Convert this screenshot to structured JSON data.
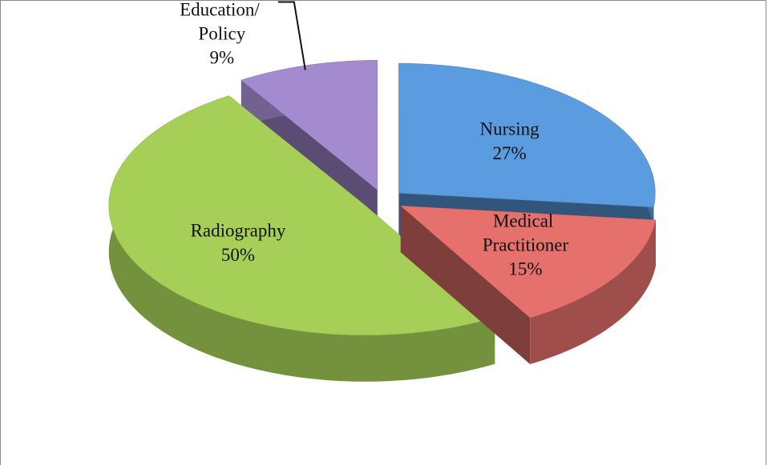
{
  "chart_data": {
    "type": "pie",
    "categories": [
      "Nursing",
      "Medical Practitioner",
      "Radiography",
      "Education/ Policy"
    ],
    "values": [
      27,
      15,
      50,
      9
    ],
    "value_labels": [
      "27%",
      "15%",
      "50%",
      "9%"
    ],
    "colors": [
      "#5b9be0",
      "#e5706c",
      "#a6cf58",
      "#a48bd0"
    ],
    "three_d": true,
    "exploded": true
  }
}
